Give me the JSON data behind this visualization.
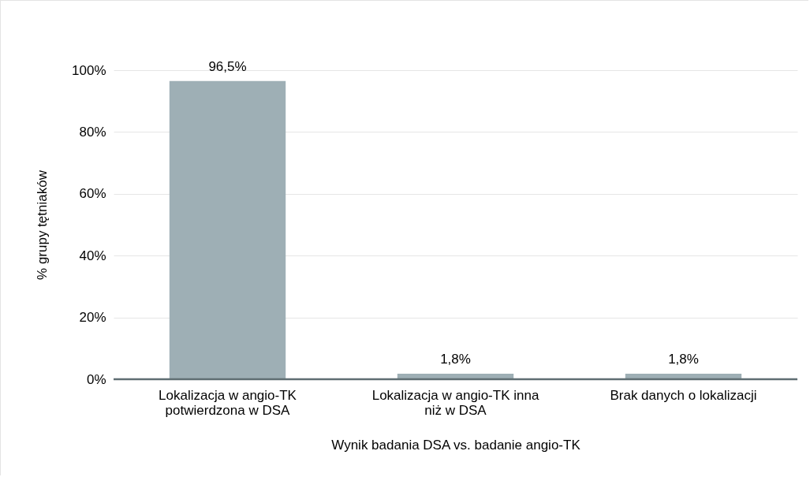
{
  "chart_data": {
    "type": "bar",
    "xlabel": "Wynik badania DSA vs. badanie angio-TK",
    "ylabel": "% grupy tętniaków",
    "categories": [
      "Lokalizacja w angio-TK potwierdzona w DSA",
      "Lokalizacja w angio-TK inna niż w DSA",
      "Brak danych o lokalizacji"
    ],
    "values": [
      96.5,
      1.8,
      1.8
    ],
    "value_labels": [
      "96,5%",
      "1,8%",
      "1,8%"
    ],
    "color": "#9eafb5",
    "ylim": [
      0,
      100
    ],
    "yticks": [
      {
        "value": 0,
        "label": "0%"
      },
      {
        "value": 20,
        "label": "20%"
      },
      {
        "value": 40,
        "label": "40%"
      },
      {
        "value": 60,
        "label": "60%"
      },
      {
        "value": 80,
        "label": "80%"
      },
      {
        "value": 100,
        "label": "100%"
      }
    ],
    "grid": "y"
  }
}
